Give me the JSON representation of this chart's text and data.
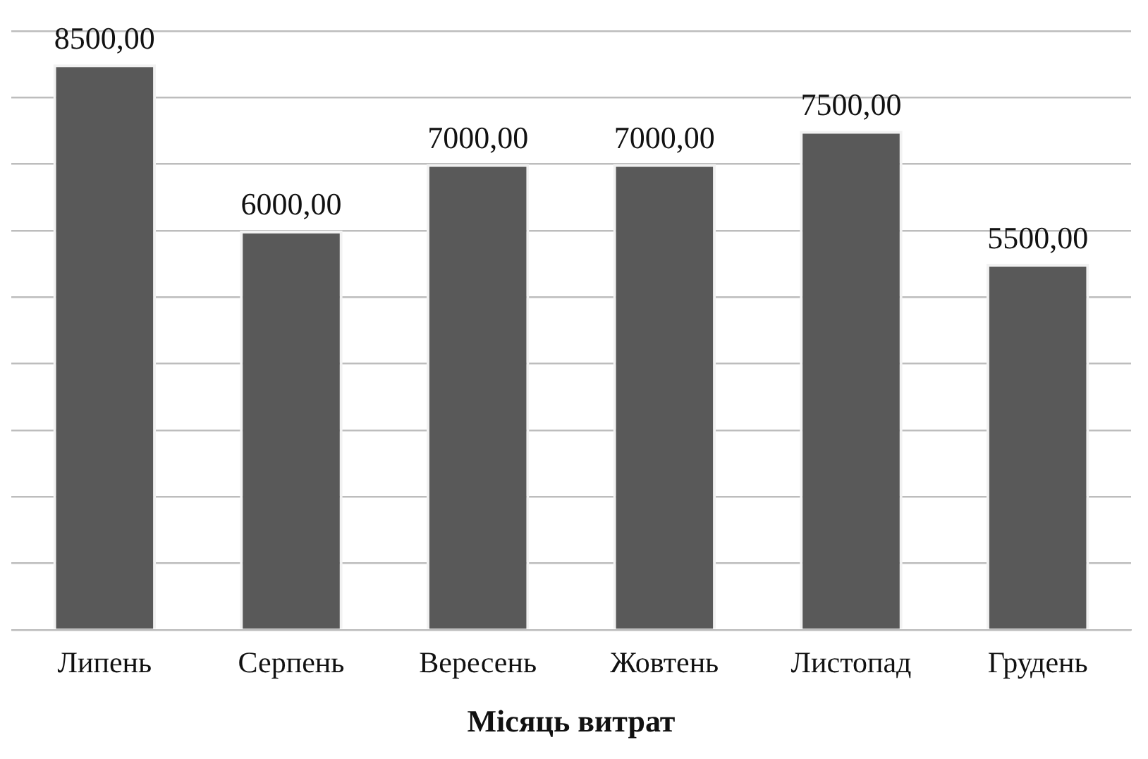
{
  "chart_data": {
    "type": "bar",
    "xlabel": "Місяць витрат",
    "categories": [
      "Липень",
      "Серпень",
      "Вересень",
      "Жовтень",
      "Листопад",
      "Грудень"
    ],
    "values": [
      8500,
      6000,
      7000,
      7000,
      7500,
      5500
    ],
    "value_labels": [
      "8500,00",
      "6000,00",
      "7000,00",
      "7000,00",
      "7500,00",
      "5500,00"
    ],
    "color": "#595959",
    "ylim": [
      0,
      9000
    ],
    "grid": "y",
    "tick_labels": "x",
    "legend": false
  }
}
